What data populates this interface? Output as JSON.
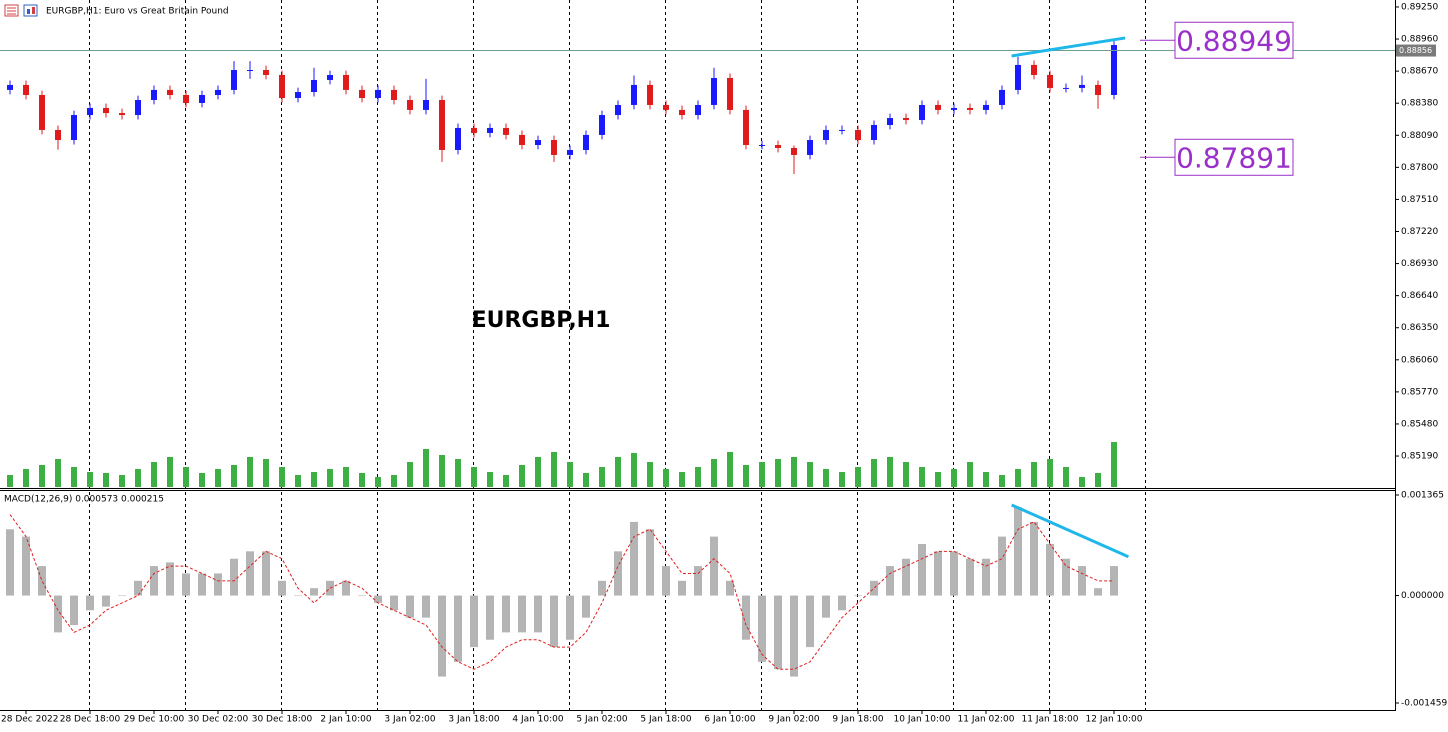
{
  "chart_data": [
    {
      "type": "candlestick",
      "title": "EURGBP,H1:  Euro vs Great Britain Pound",
      "watermark": "EURGBP,H1",
      "categories": [
        null,
        "28 Dec 2022",
        null,
        null,
        null,
        "28 Dec 18:00",
        null,
        null,
        null,
        "29 Dec 10:00",
        null,
        null,
        null,
        "30 Dec 02:00",
        null,
        null,
        null,
        "30 Dec 18:00",
        null,
        null,
        null,
        "2 Jan 10:00",
        null,
        null,
        null,
        "3 Jan 02:00",
        null,
        null,
        null,
        "3 Jan 18:00",
        null,
        null,
        null,
        "4 Jan 10:00",
        null,
        null,
        null,
        "5 Jan 02:00",
        null,
        null,
        null,
        "5 Jan 18:00",
        null,
        null,
        null,
        "6 Jan 10:00",
        null,
        null,
        null,
        "9 Jan 02:00",
        null,
        null,
        null,
        "9 Jan 18:00",
        null,
        null,
        null,
        "10 Jan 10:00",
        null,
        null,
        null,
        "11 Jan 02:00",
        null,
        null,
        null,
        "11 Jan 18:00",
        null,
        null,
        null,
        "12 Jan 10:00"
      ],
      "open": [
        0.885,
        0.88545,
        0.88454,
        0.88138,
        0.88047,
        0.88273,
        0.88337,
        0.88291,
        0.88273,
        0.88409,
        0.885,
        0.88454,
        0.88382,
        0.88454,
        0.885,
        0.8868,
        0.8868,
        0.88635,
        0.88427,
        0.88481,
        0.8859,
        0.88635,
        0.885,
        0.88427,
        0.885,
        0.88409,
        0.88319,
        0.88409,
        0.87957,
        0.88156,
        0.88111,
        0.88156,
        0.88093,
        0.88002,
        0.88047,
        0.87912,
        0.87957,
        0.88093,
        0.88273,
        0.88364,
        0.88545,
        0.88364,
        0.88319,
        0.88273,
        0.88364,
        0.88608,
        0.88319,
        0.88002,
        0.88002,
        0.87975,
        0.87912,
        0.88047,
        0.88138,
        0.88138,
        0.88047,
        0.88183,
        0.88246,
        0.88228,
        0.88364,
        0.88319,
        0.88337,
        0.88319,
        0.88364,
        0.885,
        0.88726,
        0.88635,
        0.88518,
        0.88518,
        0.88545,
        0.88454
      ],
      "high": [
        0.88585,
        0.88585,
        0.88494,
        0.88178,
        0.88313,
        0.88377,
        0.88377,
        0.88331,
        0.88449,
        0.8854,
        0.8854,
        0.88494,
        0.88494,
        0.8854,
        0.8876,
        0.8876,
        0.8872,
        0.88675,
        0.88521,
        0.887,
        0.88675,
        0.88675,
        0.8854,
        0.8854,
        0.8854,
        0.88449,
        0.886,
        0.88449,
        0.88196,
        0.88196,
        0.88196,
        0.88196,
        0.88133,
        0.88087,
        0.88087,
        0.87997,
        0.88133,
        0.88313,
        0.88404,
        0.8863,
        0.88585,
        0.88404,
        0.88359,
        0.88404,
        0.887,
        0.88648,
        0.88359,
        0.88042,
        0.88042,
        0.87997,
        0.88087,
        0.88178,
        0.88178,
        0.88178,
        0.88223,
        0.88286,
        0.88286,
        0.88404,
        0.88404,
        0.88377,
        0.88377,
        0.88404,
        0.8854,
        0.888,
        0.88766,
        0.88675,
        0.88558,
        0.8863,
        0.88585,
        0.88949
      ],
      "low": [
        0.8846,
        0.88414,
        0.88098,
        0.8796,
        0.88007,
        0.88233,
        0.88251,
        0.88233,
        0.88233,
        0.88369,
        0.88414,
        0.88342,
        0.88342,
        0.88414,
        0.8846,
        0.886,
        0.88595,
        0.88387,
        0.88387,
        0.88441,
        0.8855,
        0.8846,
        0.88387,
        0.88387,
        0.88369,
        0.88279,
        0.88279,
        0.8785,
        0.87917,
        0.88071,
        0.88071,
        0.88053,
        0.87962,
        0.87962,
        0.8785,
        0.87872,
        0.87917,
        0.88053,
        0.88233,
        0.88324,
        0.88324,
        0.88279,
        0.88233,
        0.88233,
        0.88324,
        0.88279,
        0.87962,
        0.87962,
        0.87935,
        0.8774,
        0.87872,
        0.88007,
        0.88098,
        0.88007,
        0.88007,
        0.88143,
        0.88188,
        0.88188,
        0.88279,
        0.88279,
        0.88279,
        0.88279,
        0.88324,
        0.8846,
        0.88595,
        0.88478,
        0.88478,
        0.88478,
        0.8833,
        0.88414
      ],
      "close": [
        0.88545,
        0.88454,
        0.88138,
        0.88047,
        0.88273,
        0.88337,
        0.88291,
        0.88273,
        0.88409,
        0.885,
        0.88454,
        0.88382,
        0.88454,
        0.885,
        0.8868,
        0.8868,
        0.88635,
        0.88427,
        0.88481,
        0.8859,
        0.88635,
        0.885,
        0.88427,
        0.885,
        0.88409,
        0.88319,
        0.88409,
        0.87957,
        0.88156,
        0.88111,
        0.88156,
        0.88093,
        0.88002,
        0.88047,
        0.87912,
        0.87957,
        0.88093,
        0.88273,
        0.88364,
        0.88545,
        0.88364,
        0.88319,
        0.88273,
        0.88364,
        0.88608,
        0.88319,
        0.88002,
        0.88002,
        0.87975,
        0.87912,
        0.88047,
        0.88138,
        0.88138,
        0.88047,
        0.88183,
        0.88246,
        0.88228,
        0.88364,
        0.88319,
        0.88337,
        0.88319,
        0.88364,
        0.885,
        0.88726,
        0.88635,
        0.88518,
        0.88518,
        0.88545,
        0.88454,
        0.88906
      ],
      "volume": [
        12,
        18,
        22,
        28,
        20,
        15,
        14,
        12,
        18,
        25,
        30,
        20,
        14,
        18,
        22,
        30,
        28,
        20,
        12,
        15,
        18,
        20,
        14,
        10,
        12,
        25,
        38,
        32,
        28,
        20,
        15,
        12,
        22,
        30,
        35,
        25,
        14,
        20,
        30,
        34,
        25,
        18,
        15,
        20,
        28,
        35,
        22,
        25,
        28,
        30,
        25,
        18,
        15,
        20,
        28,
        30,
        25,
        20,
        15,
        18,
        25,
        15,
        12,
        18,
        25,
        28,
        20,
        10,
        14,
        45
      ],
      "bull_color": "#1a1aff",
      "bear_color": "#e01b1b",
      "volume_color": "#3cb043",
      "ylim": [
        0.84901,
        0.89313
      ],
      "yticks": [
        {
          "value": 0.8925,
          "label": "0.89250"
        },
        {
          "value": 0.8896,
          "label": "0.88960"
        },
        {
          "value": 0.8867,
          "label": "0.88670"
        },
        {
          "value": 0.8838,
          "label": "0.88380"
        },
        {
          "value": 0.8809,
          "label": "0.88090"
        },
        {
          "value": 0.878,
          "label": "0.87800"
        },
        {
          "value": 0.8751,
          "label": "0.87510"
        },
        {
          "value": 0.8722,
          "label": "0.87220"
        },
        {
          "value": 0.8693,
          "label": "0.86930"
        },
        {
          "value": 0.8664,
          "label": "0.86640"
        },
        {
          "value": 0.8635,
          "label": "0.86350"
        },
        {
          "value": 0.8606,
          "label": "0.86060"
        },
        {
          "value": 0.8577,
          "label": "0.85770"
        },
        {
          "value": 0.8548,
          "label": "0.85480"
        },
        {
          "value": 0.8519,
          "label": "0.85190"
        }
      ],
      "bid": 0.88856,
      "levels": [
        0.88949,
        0.87891
      ],
      "level_color": "#9b2fc9",
      "trendline": {
        "x": [
          62.6,
          69.7
        ],
        "values": [
          0.88807,
          0.8897
        ],
        "color": "#1fb7ea"
      }
    },
    {
      "type": "macd",
      "title": "MACD(12,26,9) 0.000573 0.000215",
      "histogram": [
        0.0009,
        0.0008,
        0.0004,
        -0.0005,
        -0.0004,
        -0.0002,
        -0.00015,
        0.0,
        0.0002,
        0.0004,
        0.00045,
        0.0003,
        0.0003,
        0.0003,
        0.0005,
        0.0006,
        0.0006,
        0.0002,
        0.0,
        0.0001,
        0.0002,
        0.0002,
        0.0,
        -0.0001,
        -0.0002,
        -0.0003,
        -0.0003,
        -0.0011,
        -0.0009,
        -0.0007,
        -0.0006,
        -0.0005,
        -0.0005,
        -0.0005,
        -0.0007,
        -0.0006,
        -0.0003,
        0.0002,
        0.0006,
        0.001,
        0.0009,
        0.0004,
        0.0002,
        0.0004,
        0.0008,
        0.0002,
        -0.0006,
        -0.0009,
        -0.001,
        -0.0011,
        -0.0007,
        -0.0003,
        -0.0002,
        0.0,
        0.0002,
        0.0004,
        0.0005,
        0.0007,
        0.0006,
        0.0006,
        0.0005,
        0.0005,
        0.0008,
        0.0012,
        0.001,
        0.0007,
        0.0005,
        0.0004,
        0.0001,
        0.0004
      ],
      "signal": [
        0.0011,
        0.0008,
        0.0002,
        -0.0002,
        -0.0005,
        -0.0004,
        -0.0002,
        -0.0001,
        0.0,
        0.0003,
        0.0004,
        0.0004,
        0.0003,
        0.0002,
        0.0002,
        0.0004,
        0.0006,
        0.0005,
        0.0001,
        -0.0001,
        0.0001,
        0.0002,
        0.0001,
        -0.0001,
        -0.0002,
        -0.0003,
        -0.0004,
        -0.0007,
        -0.0009,
        -0.001,
        -0.0009,
        -0.0007,
        -0.0006,
        -0.0006,
        -0.0007,
        -0.0007,
        -0.0005,
        -0.0001,
        0.0004,
        0.0008,
        0.0009,
        0.0006,
        0.0003,
        0.0003,
        0.0005,
        0.0003,
        -0.0004,
        -0.0008,
        -0.001,
        -0.001,
        -0.0009,
        -0.0006,
        -0.0003,
        -0.0001,
        0.0001,
        0.0003,
        0.0004,
        0.0005,
        0.0006,
        0.0006,
        0.0005,
        0.0004,
        0.0005,
        0.0009,
        0.001,
        0.0007,
        0.0004,
        0.0003,
        0.0002,
        0.0002
      ],
      "histogram_color": "#b4b4b4",
      "signal_color": "#e02020",
      "ylim": [
        -0.001554,
        0.001433
      ],
      "yticks": [
        0.001365,
        {
          "value": 0,
          "label": "0.000000"
        },
        -0.001459
      ],
      "trendline": {
        "x": [
          62.6,
          69.9
        ],
        "values": [
          0.00123,
          0.000527
        ],
        "color": "#1fb7ea"
      }
    }
  ]
}
